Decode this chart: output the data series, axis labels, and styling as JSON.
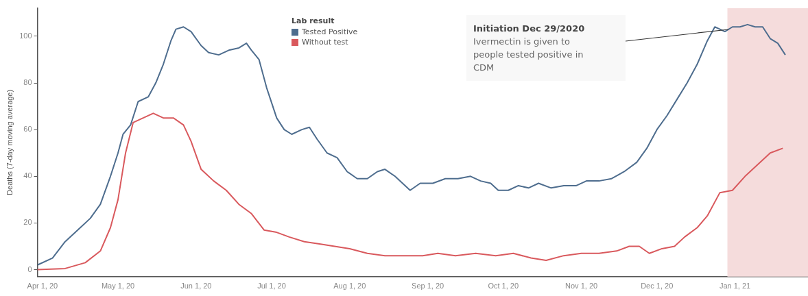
{
  "chart_data": {
    "type": "line",
    "ylabel": "Deaths (7-day moving average)",
    "legend_title": "Lab result",
    "legend": "top",
    "grid": false,
    "marker": "none",
    "line_style": "solid",
    "xlim": [
      "2020-03-30",
      "2021-01-30"
    ],
    "ylim": [
      -3,
      112
    ],
    "yticks": [
      0,
      20,
      40,
      60,
      80,
      100
    ],
    "xticks": [
      {
        "value": "2020-04-01",
        "label": "Apr 1, 20"
      },
      {
        "value": "2020-05-01",
        "label": "May 1, 20"
      },
      {
        "value": "2020-06-01",
        "label": "Jun 1, 20"
      },
      {
        "value": "2020-07-01",
        "label": "Jul 1, 20"
      },
      {
        "value": "2020-08-01",
        "label": "Aug 1, 20"
      },
      {
        "value": "2020-09-01",
        "label": "Sep 1, 20"
      },
      {
        "value": "2020-10-01",
        "label": "Oct 1, 20"
      },
      {
        "value": "2020-11-01",
        "label": "Nov 1, 20"
      },
      {
        "value": "2020-12-01",
        "label": "Dec 1, 20"
      },
      {
        "value": "2021-01-01",
        "label": "Jan 1, 21"
      }
    ],
    "bands": [
      {
        "axis": "x",
        "from": "2020-12-29",
        "to": "2021-01-30",
        "color": "#f5dcdc"
      }
    ],
    "annotations": [
      "Initiation Dec 29/2020\nIvermectin is given to\npeople tested positive in\nCDM"
    ],
    "series": [
      {
        "name": "Tested Positive",
        "color": "#4e6d8e",
        "x": [
          "2020-03-30",
          "2020-04-05",
          "2020-04-10",
          "2020-04-15",
          "2020-04-20",
          "2020-04-24",
          "2020-04-28",
          "2020-05-01",
          "2020-05-03",
          "2020-05-06",
          "2020-05-09",
          "2020-05-13",
          "2020-05-16",
          "2020-05-19",
          "2020-05-22",
          "2020-05-24",
          "2020-05-27",
          "2020-05-30",
          "2020-06-03",
          "2020-06-06",
          "2020-06-10",
          "2020-06-14",
          "2020-06-18",
          "2020-06-21",
          "2020-06-23",
          "2020-06-26",
          "2020-06-29",
          "2020-07-03",
          "2020-07-06",
          "2020-07-09",
          "2020-07-13",
          "2020-07-16",
          "2020-07-19",
          "2020-07-23",
          "2020-07-27",
          "2020-07-31",
          "2020-08-04",
          "2020-08-08",
          "2020-08-12",
          "2020-08-15",
          "2020-08-19",
          "2020-08-22",
          "2020-08-25",
          "2020-08-29",
          "2020-09-03",
          "2020-09-08",
          "2020-09-13",
          "2020-09-18",
          "2020-09-22",
          "2020-09-26",
          "2020-09-29",
          "2020-10-03",
          "2020-10-07",
          "2020-10-11",
          "2020-10-15",
          "2020-10-20",
          "2020-10-25",
          "2020-10-30",
          "2020-11-03",
          "2020-11-08",
          "2020-11-13",
          "2020-11-18",
          "2020-11-23",
          "2020-11-27",
          "2020-12-01",
          "2020-12-05",
          "2020-12-09",
          "2020-12-13",
          "2020-12-17",
          "2020-12-21",
          "2020-12-24",
          "2020-12-26",
          "2020-12-28",
          "2020-12-31",
          "2021-01-03",
          "2021-01-06",
          "2021-01-09",
          "2021-01-12",
          "2021-01-15",
          "2021-01-18",
          "2021-01-21"
        ],
        "values": [
          2,
          5,
          12,
          17,
          22,
          28,
          40,
          50,
          58,
          62,
          72,
          74,
          80,
          88,
          98,
          103,
          104,
          102,
          96,
          93,
          92,
          94,
          95,
          97,
          94,
          90,
          78,
          65,
          60,
          58,
          60,
          61,
          56,
          50,
          48,
          42,
          39,
          39,
          42,
          43,
          40,
          37,
          34,
          37,
          37,
          39,
          39,
          40,
          38,
          37,
          34,
          34,
          36,
          35,
          37,
          35,
          36,
          36,
          38,
          38,
          39,
          42,
          46,
          52,
          60,
          66,
          73,
          80,
          88,
          98,
          104,
          103,
          102,
          104,
          104,
          105,
          104,
          104,
          99,
          97,
          92
        ]
      },
      {
        "name": "Without test",
        "color": "#d9595d",
        "x": [
          "2020-03-30",
          "2020-04-10",
          "2020-04-18",
          "2020-04-24",
          "2020-04-28",
          "2020-05-01",
          "2020-05-04",
          "2020-05-07",
          "2020-05-11",
          "2020-05-15",
          "2020-05-19",
          "2020-05-23",
          "2020-05-27",
          "2020-05-30",
          "2020-06-03",
          "2020-06-08",
          "2020-06-13",
          "2020-06-18",
          "2020-06-23",
          "2020-06-28",
          "2020-07-03",
          "2020-07-08",
          "2020-07-14",
          "2020-07-20",
          "2020-07-26",
          "2020-08-01",
          "2020-08-08",
          "2020-08-15",
          "2020-08-22",
          "2020-08-30",
          "2020-09-05",
          "2020-09-12",
          "2020-09-20",
          "2020-09-28",
          "2020-10-05",
          "2020-10-12",
          "2020-10-18",
          "2020-10-25",
          "2020-11-01",
          "2020-11-08",
          "2020-11-15",
          "2020-11-20",
          "2020-11-24",
          "2020-11-28",
          "2020-12-03",
          "2020-12-08",
          "2020-12-12",
          "2020-12-17",
          "2020-12-21",
          "2020-12-26",
          "2020-12-31",
          "2021-01-05",
          "2021-01-10",
          "2021-01-15",
          "2021-01-20"
        ],
        "values": [
          0,
          0.5,
          3,
          8,
          18,
          30,
          50,
          63,
          65,
          67,
          65,
          65,
          62,
          55,
          43,
          38,
          34,
          28,
          24,
          17,
          16,
          14,
          12,
          11,
          10,
          9,
          7,
          6,
          6,
          6,
          7,
          6,
          7,
          6,
          7,
          5,
          4,
          6,
          7,
          7,
          8,
          10,
          10,
          7,
          9,
          10,
          14,
          18,
          23,
          33,
          34,
          40,
          45,
          50,
          52
        ]
      }
    ]
  }
}
